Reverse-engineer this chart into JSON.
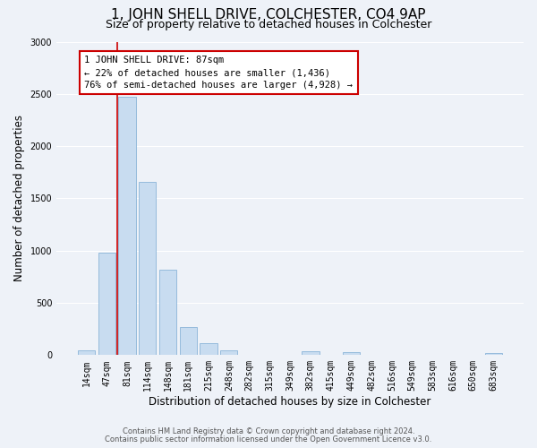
{
  "title": "1, JOHN SHELL DRIVE, COLCHESTER, CO4 9AP",
  "subtitle": "Size of property relative to detached houses in Colchester",
  "xlabel": "Distribution of detached houses by size in Colchester",
  "ylabel": "Number of detached properties",
  "bar_labels": [
    "14sqm",
    "47sqm",
    "81sqm",
    "114sqm",
    "148sqm",
    "181sqm",
    "215sqm",
    "248sqm",
    "282sqm",
    "315sqm",
    "349sqm",
    "382sqm",
    "415sqm",
    "449sqm",
    "482sqm",
    "516sqm",
    "549sqm",
    "583sqm",
    "616sqm",
    "650sqm",
    "683sqm"
  ],
  "bar_values": [
    50,
    980,
    2470,
    1660,
    820,
    265,
    115,
    45,
    0,
    0,
    0,
    35,
    0,
    30,
    0,
    0,
    0,
    0,
    0,
    0,
    20
  ],
  "bar_color": "#c8dcf0",
  "bar_edge_color": "#8ab4d8",
  "ylim": [
    0,
    3000
  ],
  "yticks": [
    0,
    500,
    1000,
    1500,
    2000,
    2500,
    3000
  ],
  "vline_x_index": 2,
  "vline_color": "#cc0000",
  "annotation_title": "1 JOHN SHELL DRIVE: 87sqm",
  "annotation_line1": "← 22% of detached houses are smaller (1,436)",
  "annotation_line2": "76% of semi-detached houses are larger (4,928) →",
  "annotation_box_color": "#ffffff",
  "annotation_border_color": "#cc0000",
  "footer1": "Contains HM Land Registry data © Crown copyright and database right 2024.",
  "footer2": "Contains public sector information licensed under the Open Government Licence v3.0.",
  "bg_color": "#eef2f8",
  "grid_color": "#ffffff",
  "title_fontsize": 11,
  "subtitle_fontsize": 9,
  "tick_fontsize": 7,
  "ylabel_fontsize": 8.5,
  "xlabel_fontsize": 8.5,
  "annotation_fontsize": 7.5,
  "footer_fontsize": 6
}
